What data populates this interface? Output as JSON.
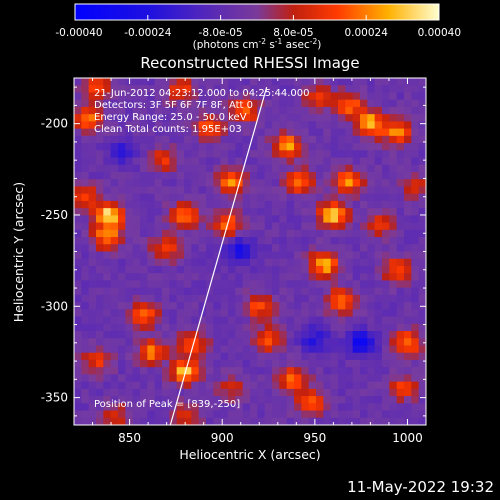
{
  "chart_data": {
    "type": "heatmap",
    "title": "Reconstructed RHESSI Image",
    "xlabel": "Heliocentric X (arcsec)",
    "ylabel": "Heliocentric Y (arcsec)",
    "xlim": [
      820,
      1010
    ],
    "ylim": [
      -365,
      -175
    ],
    "x_ticks": [
      "850",
      "900",
      "950",
      "1000"
    ],
    "y_ticks": [
      "-200",
      "-250",
      "-300",
      "-350"
    ],
    "x_tick_values": [
      850,
      900,
      950,
      1000
    ],
    "y_tick_values": [
      -200,
      -250,
      -300,
      -350
    ],
    "colorbar": {
      "ticks": [
        "-0.00040",
        "-0.00024",
        "-8.0e-05",
        "8.0e-05",
        "0.00024",
        "0.00040"
      ],
      "units_label": "(photons cm",
      "units_sup1": "-2",
      "units_mid": " s",
      "units_sup2": "-1",
      "units_end": " asec",
      "units_sup3": "-2",
      "units_close": ")",
      "range": [
        -0.0004,
        0.0004
      ]
    },
    "annotations": [
      "21-Jun-2012 04:23:12.000 to 04:25:44.000",
      "Detectors: 3F 5F 6F 7F 8F, Att 0",
      "Energy Range: 25.0 - 50.0 keV",
      "Clean     Total counts: 1.95E+03"
    ],
    "peak_label": "Position of Peak = [839,-250]",
    "limb_line": [
      [
        872,
        -365
      ],
      [
        924,
        -180
      ]
    ],
    "sources": [
      {
        "x": 839,
        "y": -250,
        "value": 0.0004
      },
      {
        "x": 838,
        "y": -262,
        "value": 0.0003
      },
      {
        "x": 828,
        "y": -197,
        "value": 0.0003
      },
      {
        "x": 826,
        "y": -240,
        "value": 0.00022
      },
      {
        "x": 857,
        "y": -305,
        "value": 0.0003
      },
      {
        "x": 862,
        "y": -325,
        "value": 0.00028
      },
      {
        "x": 880,
        "y": -336,
        "value": 0.00036
      },
      {
        "x": 884,
        "y": -320,
        "value": 0.00026
      },
      {
        "x": 880,
        "y": -250,
        "value": 0.0003
      },
      {
        "x": 870,
        "y": -268,
        "value": 0.00024
      },
      {
        "x": 905,
        "y": -232,
        "value": 0.0003
      },
      {
        "x": 903,
        "y": -255,
        "value": 0.00026
      },
      {
        "x": 893,
        "y": -202,
        "value": 0.00026
      },
      {
        "x": 912,
        "y": -193,
        "value": 0.00028
      },
      {
        "x": 935,
        "y": -212,
        "value": 0.00032
      },
      {
        "x": 942,
        "y": -232,
        "value": 0.00026
      },
      {
        "x": 960,
        "y": -250,
        "value": 0.00038
      },
      {
        "x": 968,
        "y": -232,
        "value": 0.0003
      },
      {
        "x": 955,
        "y": -277,
        "value": 0.00036
      },
      {
        "x": 964,
        "y": -297,
        "value": 0.0003
      },
      {
        "x": 980,
        "y": -200,
        "value": 0.00036
      },
      {
        "x": 995,
        "y": -205,
        "value": 0.0003
      },
      {
        "x": 968,
        "y": -190,
        "value": 0.00028
      },
      {
        "x": 920,
        "y": -300,
        "value": 0.00024
      },
      {
        "x": 925,
        "y": -318,
        "value": 0.00026
      },
      {
        "x": 938,
        "y": -340,
        "value": 0.0003
      },
      {
        "x": 948,
        "y": -353,
        "value": 0.00026
      },
      {
        "x": 995,
        "y": -280,
        "value": 0.00026
      },
      {
        "x": 1000,
        "y": -320,
        "value": 0.0003
      },
      {
        "x": 998,
        "y": -345,
        "value": 0.00022
      },
      {
        "x": 868,
        "y": -220,
        "value": 0.0002
      },
      {
        "x": 832,
        "y": -330,
        "value": 0.0002
      },
      {
        "x": 842,
        "y": -360,
        "value": 0.00018
      },
      {
        "x": 878,
        "y": -182,
        "value": 0.00022
      },
      {
        "x": 952,
        "y": -185,
        "value": 0.0002
      },
      {
        "x": 985,
        "y": -255,
        "value": 0.00018
      },
      {
        "x": 1005,
        "y": -235,
        "value": 0.00016
      },
      {
        "x": 880,
        "y": -360,
        "value": 0.0002
      },
      {
        "x": 905,
        "y": -345,
        "value": 0.00016
      },
      {
        "x": 832,
        "y": -180,
        "value": 0.00022
      }
    ],
    "negative_regions": [
      {
        "x": 910,
        "y": -270,
        "value": -0.00024
      },
      {
        "x": 975,
        "y": -320,
        "value": -0.00026
      },
      {
        "x": 950,
        "y": -318,
        "value": -0.00016
      },
      {
        "x": 845,
        "y": -215,
        "value": -0.00014
      }
    ]
  },
  "footer": {
    "timestamp": "11-May-2022 19:32"
  }
}
